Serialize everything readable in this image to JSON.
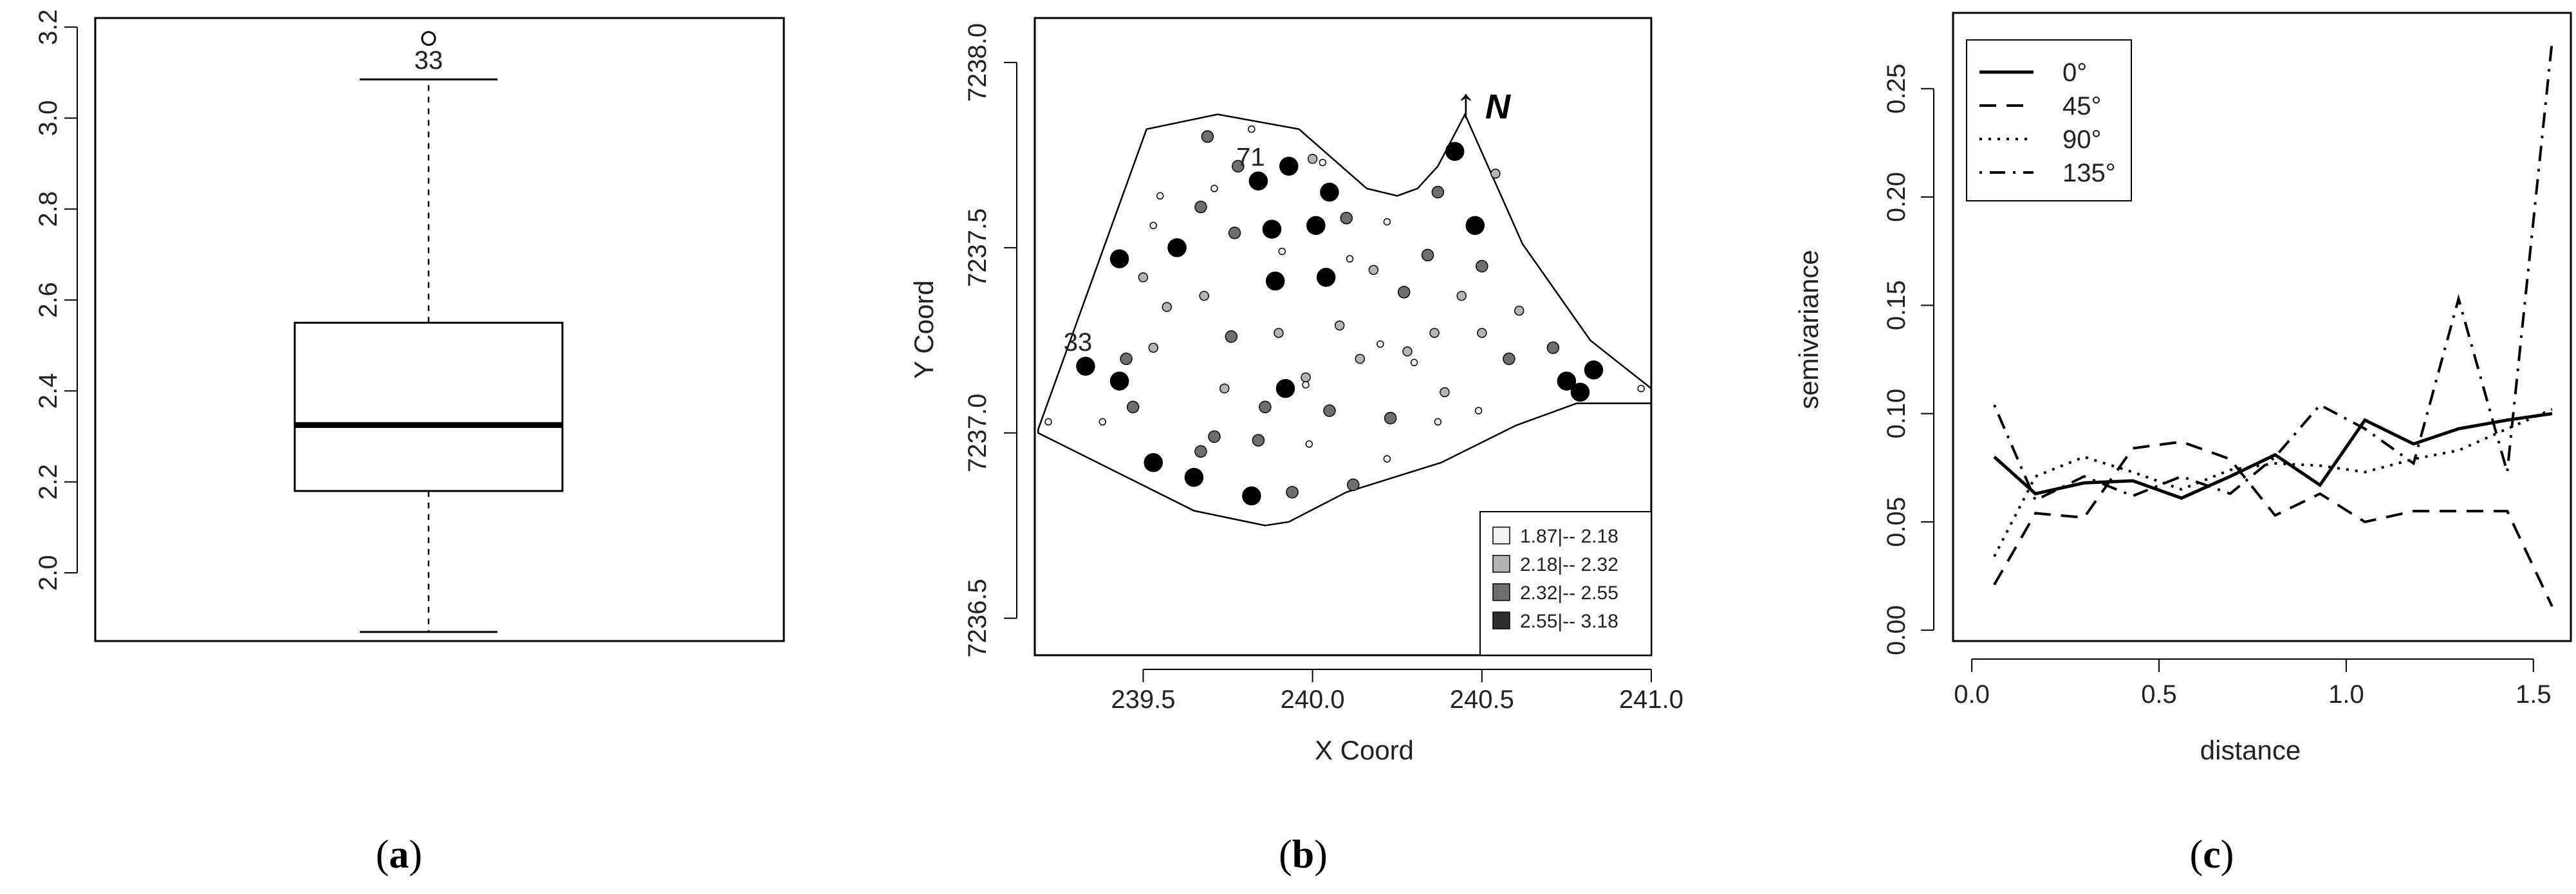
{
  "chart_data": [
    {
      "type": "boxplot",
      "panel": {
        "open": "(",
        "letter": "a",
        "close": ")"
      },
      "ylim": [
        1.85,
        3.22
      ],
      "yticks": [
        2.0,
        2.2,
        2.4,
        2.6,
        2.8,
        3.0,
        3.2
      ],
      "ytick_labels": [
        "2.0",
        "2.2",
        "2.4",
        "2.6",
        "2.8",
        "3.0",
        "3.2"
      ],
      "box": {
        "whisker_low": 1.87,
        "q1": 2.18,
        "median": 2.325,
        "q3": 2.55,
        "whisker_high": 3.085
      },
      "outliers": [
        {
          "value": 3.175,
          "label": "33"
        }
      ]
    },
    {
      "type": "scatter",
      "panel": {
        "open": "(",
        "letter": "b",
        "close": ")"
      },
      "xlabel": "X Coord",
      "ylabel": "Y Coord",
      "xlim": [
        239.18,
        241.0
      ],
      "ylim": [
        7236.4,
        7238.12
      ],
      "xticks": [
        239.5,
        240.0,
        240.5,
        241.0
      ],
      "xtick_labels": [
        "239.5",
        "240.0",
        "240.5",
        "241.0"
      ],
      "yticks": [
        7236.5,
        7237.0,
        7237.5,
        7238.0
      ],
      "ytick_labels": [
        "7236.5",
        "7237.0",
        "7237.5",
        "7238.0"
      ],
      "north_arrow": {
        "arrow": "↑",
        "letter": "N"
      },
      "boundary": [
        [
          239.19,
          7237.01
        ],
        [
          239.51,
          7237.82
        ],
        [
          239.72,
          7237.86
        ],
        [
          239.96,
          7237.82
        ],
        [
          240.16,
          7237.66
        ],
        [
          240.25,
          7237.64
        ],
        [
          240.31,
          7237.66
        ],
        [
          240.37,
          7237.72
        ],
        [
          240.45,
          7237.86
        ],
        [
          240.62,
          7237.51
        ],
        [
          240.82,
          7237.25
        ],
        [
          241.0,
          7237.12
        ],
        [
          241.0,
          7237.08
        ],
        [
          240.78,
          7237.08
        ],
        [
          240.6,
          7237.02
        ],
        [
          240.38,
          7236.92
        ],
        [
          240.1,
          7236.84
        ],
        [
          239.93,
          7236.76
        ],
        [
          239.86,
          7236.75
        ],
        [
          239.65,
          7236.79
        ],
        [
          239.19,
          7237.0
        ]
      ],
      "legend": {
        "classes": [
          {
            "label": "1.87|-- 2.18",
            "color": "#f2f2f2"
          },
          {
            "label": "2.18|-- 2.32",
            "color": "#b4b4b4"
          },
          {
            "label": "2.32|-- 2.55",
            "color": "#6e6e6e"
          },
          {
            "label": "2.55|-- 3.18",
            "color": "#2e2e2e"
          }
        ]
      },
      "points": [
        {
          "x": 239.84,
          "y": 7237.68,
          "c": 3
        },
        {
          "x": 239.93,
          "y": 7237.72,
          "c": 3
        },
        {
          "x": 240.05,
          "y": 7237.65,
          "c": 3
        },
        {
          "x": 240.42,
          "y": 7237.76,
          "c": 3
        },
        {
          "x": 239.43,
          "y": 7237.47,
          "c": 3
        },
        {
          "x": 239.6,
          "y": 7237.5,
          "c": 3
        },
        {
          "x": 239.88,
          "y": 7237.55,
          "c": 3
        },
        {
          "x": 240.01,
          "y": 7237.56,
          "c": 3
        },
        {
          "x": 240.48,
          "y": 7237.56,
          "c": 3
        },
        {
          "x": 239.89,
          "y": 7237.41,
          "c": 3
        },
        {
          "x": 240.04,
          "y": 7237.42,
          "c": 3
        },
        {
          "x": 239.33,
          "y": 7237.18,
          "c": 3
        },
        {
          "x": 239.43,
          "y": 7237.14,
          "c": 3
        },
        {
          "x": 239.92,
          "y": 7237.12,
          "c": 3
        },
        {
          "x": 240.75,
          "y": 7237.14,
          "c": 3
        },
        {
          "x": 240.83,
          "y": 7237.17,
          "c": 3
        },
        {
          "x": 240.79,
          "y": 7237.11,
          "c": 3
        },
        {
          "x": 239.53,
          "y": 7236.92,
          "c": 3
        },
        {
          "x": 239.65,
          "y": 7236.88,
          "c": 3
        },
        {
          "x": 239.82,
          "y": 7236.83,
          "c": 3
        },
        {
          "x": 239.69,
          "y": 7237.8,
          "c": 2
        },
        {
          "x": 239.78,
          "y": 7237.72,
          "c": 2
        },
        {
          "x": 240.37,
          "y": 7237.65,
          "c": 2
        },
        {
          "x": 239.67,
          "y": 7237.61,
          "c": 2
        },
        {
          "x": 239.77,
          "y": 7237.54,
          "c": 2
        },
        {
          "x": 240.34,
          "y": 7237.48,
          "c": 2
        },
        {
          "x": 240.27,
          "y": 7237.38,
          "c": 2
        },
        {
          "x": 240.5,
          "y": 7237.45,
          "c": 2
        },
        {
          "x": 239.76,
          "y": 7237.26,
          "c": 2
        },
        {
          "x": 240.58,
          "y": 7237.2,
          "c": 2
        },
        {
          "x": 240.71,
          "y": 7237.23,
          "c": 2
        },
        {
          "x": 239.47,
          "y": 7237.07,
          "c": 2
        },
        {
          "x": 239.86,
          "y": 7237.07,
          "c": 2
        },
        {
          "x": 240.05,
          "y": 7237.06,
          "c": 2
        },
        {
          "x": 240.23,
          "y": 7237.04,
          "c": 2
        },
        {
          "x": 239.67,
          "y": 7236.95,
          "c": 2
        },
        {
          "x": 239.71,
          "y": 7236.99,
          "c": 2
        },
        {
          "x": 239.84,
          "y": 7236.98,
          "c": 2
        },
        {
          "x": 239.94,
          "y": 7236.84,
          "c": 2
        },
        {
          "x": 240.12,
          "y": 7236.86,
          "c": 2
        },
        {
          "x": 240.1,
          "y": 7237.58,
          "c": 2
        },
        {
          "x": 239.45,
          "y": 7237.2,
          "c": 2
        },
        {
          "x": 239.5,
          "y": 7237.42,
          "c": 1
        },
        {
          "x": 239.57,
          "y": 7237.34,
          "c": 1
        },
        {
          "x": 239.68,
          "y": 7237.37,
          "c": 1
        },
        {
          "x": 240.18,
          "y": 7237.44,
          "c": 1
        },
        {
          "x": 240.44,
          "y": 7237.37,
          "c": 1
        },
        {
          "x": 239.53,
          "y": 7237.23,
          "c": 1
        },
        {
          "x": 239.9,
          "y": 7237.27,
          "c": 1
        },
        {
          "x": 240.08,
          "y": 7237.29,
          "c": 1
        },
        {
          "x": 240.36,
          "y": 7237.27,
          "c": 1
        },
        {
          "x": 240.5,
          "y": 7237.27,
          "c": 1
        },
        {
          "x": 240.61,
          "y": 7237.33,
          "c": 1
        },
        {
          "x": 239.74,
          "y": 7237.12,
          "c": 1
        },
        {
          "x": 239.98,
          "y": 7237.15,
          "c": 1
        },
        {
          "x": 240.14,
          "y": 7237.2,
          "c": 1
        },
        {
          "x": 240.39,
          "y": 7237.11,
          "c": 1
        },
        {
          "x": 240.0,
          "y": 7237.74,
          "c": 1
        },
        {
          "x": 240.54,
          "y": 7237.7,
          "c": 1
        },
        {
          "x": 240.28,
          "y": 7237.22,
          "c": 1
        },
        {
          "x": 239.22,
          "y": 7237.03,
          "c": 0
        },
        {
          "x": 239.55,
          "y": 7237.64,
          "c": 0
        },
        {
          "x": 239.82,
          "y": 7237.82,
          "c": 0
        },
        {
          "x": 240.03,
          "y": 7237.73,
          "c": 0
        },
        {
          "x": 239.53,
          "y": 7237.56,
          "c": 0
        },
        {
          "x": 239.71,
          "y": 7237.66,
          "c": 0
        },
        {
          "x": 240.22,
          "y": 7237.57,
          "c": 0
        },
        {
          "x": 240.2,
          "y": 7237.24,
          "c": 0
        },
        {
          "x": 240.3,
          "y": 7237.19,
          "c": 0
        },
        {
          "x": 240.37,
          "y": 7237.03,
          "c": 0
        },
        {
          "x": 240.49,
          "y": 7237.06,
          "c": 0
        },
        {
          "x": 240.97,
          "y": 7237.12,
          "c": 0
        },
        {
          "x": 239.98,
          "y": 7237.13,
          "c": 0
        },
        {
          "x": 239.99,
          "y": 7236.97,
          "c": 0
        },
        {
          "x": 240.22,
          "y": 7236.93,
          "c": 0
        },
        {
          "x": 239.38,
          "y": 7237.03,
          "c": 0
        },
        {
          "x": 239.91,
          "y": 7237.49,
          "c": 0
        },
        {
          "x": 240.11,
          "y": 7237.47,
          "c": 0
        }
      ],
      "point_labels": [
        {
          "text": "71",
          "x": 239.84,
          "y": 7237.68
        },
        {
          "text": "33",
          "x": 239.33,
          "y": 7237.18
        }
      ]
    },
    {
      "type": "line",
      "panel": {
        "open": "(",
        "letter": "c",
        "close": ")"
      },
      "xlabel": "distance",
      "ylabel": "semivariance",
      "xlim": [
        -0.05,
        1.6
      ],
      "ylim": [
        -0.005,
        0.285
      ],
      "xticks": [
        0.0,
        0.5,
        1.0,
        1.5
      ],
      "xtick_labels": [
        "0.0",
        "0.5",
        "1.0",
        "1.5"
      ],
      "yticks": [
        0.0,
        0.05,
        0.1,
        0.15,
        0.2,
        0.25
      ],
      "ytick_labels": [
        "0.00",
        "0.05",
        "0.10",
        "0.15",
        "0.20",
        "0.25"
      ],
      "legend_position": "top-left",
      "series": [
        {
          "name": "0°",
          "dash": "solid",
          "x": [
            0.06,
            0.17,
            0.3,
            0.43,
            0.56,
            0.69,
            0.81,
            0.93,
            1.05,
            1.18,
            1.3,
            1.43,
            1.55
          ],
          "values": [
            0.08,
            0.063,
            0.068,
            0.069,
            0.061,
            0.071,
            0.081,
            0.067,
            0.097,
            0.086,
            0.093,
            0.097,
            0.1
          ]
        },
        {
          "name": "45°",
          "dash": "dashed",
          "x": [
            0.06,
            0.17,
            0.3,
            0.43,
            0.56,
            0.69,
            0.81,
            0.93,
            1.05,
            1.18,
            1.3,
            1.43,
            1.55
          ],
          "values": [
            0.021,
            0.054,
            0.052,
            0.084,
            0.087,
            0.079,
            0.053,
            0.063,
            0.05,
            0.055,
            0.055,
            0.055,
            0.011
          ]
        },
        {
          "name": "90°",
          "dash": "dotted",
          "x": [
            0.06,
            0.17,
            0.3,
            0.43,
            0.56,
            0.69,
            0.81,
            0.93,
            1.05,
            1.18,
            1.3,
            1.43,
            1.55
          ],
          "values": [
            0.034,
            0.071,
            0.08,
            0.073,
            0.065,
            0.074,
            0.077,
            0.076,
            0.073,
            0.079,
            0.083,
            0.093,
            0.102
          ]
        },
        {
          "name": "135°",
          "dash": "dotdash",
          "x": [
            0.06,
            0.17,
            0.3,
            0.43,
            0.56,
            0.69,
            0.81,
            0.93,
            1.05,
            1.18,
            1.3,
            1.43,
            1.55
          ],
          "values": [
            0.104,
            0.06,
            0.071,
            0.062,
            0.071,
            0.063,
            0.08,
            0.104,
            0.093,
            0.077,
            0.153,
            0.073,
            0.272
          ]
        }
      ]
    }
  ]
}
